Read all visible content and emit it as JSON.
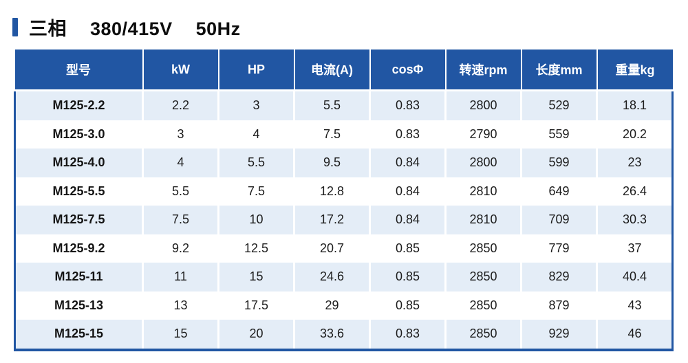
{
  "title": {
    "text": "三相  380/415V  50Hz"
  },
  "colors": {
    "header_bg": "#2156a3",
    "header_text": "#ffffff",
    "row_stripe": "#e4edf7",
    "row_plain": "#ffffff",
    "table_border": "#2156a3",
    "accent_bar": "#2156a3",
    "body_text": "#1c1c1c"
  },
  "table": {
    "columns": [
      "型号",
      "kW",
      "HP",
      "电流(A)",
      "cosΦ",
      "转速rpm",
      "长度mm",
      "重量kg"
    ],
    "rows": [
      [
        "M125-2.2",
        "2.2",
        "3",
        "5.5",
        "0.83",
        "2800",
        "529",
        "18.1"
      ],
      [
        "M125-3.0",
        "3",
        "4",
        "7.5",
        "0.83",
        "2790",
        "559",
        "20.2"
      ],
      [
        "M125-4.0",
        "4",
        "5.5",
        "9.5",
        "0.84",
        "2800",
        "599",
        "23"
      ],
      [
        "M125-5.5",
        "5.5",
        "7.5",
        "12.8",
        "0.84",
        "2810",
        "649",
        "26.4"
      ],
      [
        "M125-7.5",
        "7.5",
        "10",
        "17.2",
        "0.84",
        "2810",
        "709",
        "30.3"
      ],
      [
        "M125-9.2",
        "9.2",
        "12.5",
        "20.7",
        "0.85",
        "2850",
        "779",
        "37"
      ],
      [
        "M125-11",
        "11",
        "15",
        "24.6",
        "0.85",
        "2850",
        "829",
        "40.4"
      ],
      [
        "M125-13",
        "13",
        "17.5",
        "29",
        "0.85",
        "2850",
        "879",
        "43"
      ],
      [
        "M125-15",
        "15",
        "20",
        "33.6",
        "0.83",
        "2850",
        "929",
        "46"
      ]
    ]
  }
}
